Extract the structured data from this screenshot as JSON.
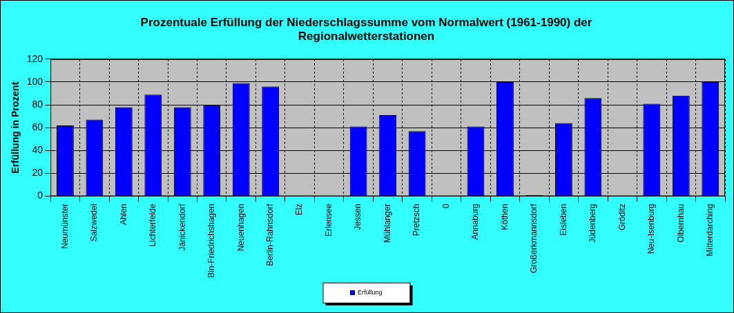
{
  "chart_data": {
    "type": "bar",
    "title": [
      "Prozentuale Erfüllung der Niederschlagssumme vom Normalwert (1961-1990) der",
      "Regionalwetterstationen"
    ],
    "y_label": "Erfüllung in Prozent",
    "categories": [
      "Neumünster",
      "Salzwedel",
      "Ahlen",
      "Lichterfelde",
      "Jänickendorf",
      "Bln-Friedrichshagen",
      "Neuenhagen",
      "Berlin-Rahnsdorf",
      "Elz",
      "Erlensee",
      "Jessen",
      "Mühlanger",
      "Pretzsch",
      "0",
      "Annaburg",
      "Köthen",
      "Großerkmannsdorf",
      "Eisleben",
      "Jüdenberg",
      "Gröditz",
      "Neu-Isenburg",
      "Olbernhau",
      "Mitterdarching"
    ],
    "series": [
      {
        "name": "Erfüllung",
        "color": "#0000ff",
        "values": [
          62,
          67,
          78,
          89,
          78,
          80,
          99,
          96,
          null,
          null,
          61,
          71,
          57,
          null,
          61,
          100,
          1,
          64,
          86,
          null,
          81,
          88,
          100
        ]
      }
    ],
    "ylim": [
      0,
      120
    ],
    "yticks": [
      0,
      20,
      40,
      60,
      80,
      100,
      120
    ],
    "grid": true,
    "legend": "bottom"
  }
}
